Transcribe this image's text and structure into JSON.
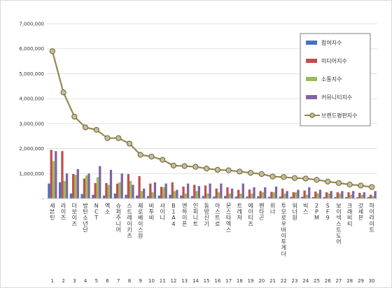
{
  "chart_data": {
    "type": "bar",
    "title": "",
    "xlabel": "",
    "ylabel": "",
    "ylim": [
      0,
      7000000
    ],
    "y_ticks": [
      0,
      1000000,
      2000000,
      3000000,
      4000000,
      5000000,
      6000000,
      7000000
    ],
    "y_tick_labels": [
      "-",
      "1,000,000",
      "2,000,000",
      "3,000,000",
      "4,000,000",
      "5,000,000",
      "6,000,000",
      "7,000,000"
    ],
    "grid": true,
    "legend_position": "right",
    "x": [
      "1",
      "2",
      "3",
      "4",
      "5",
      "6",
      "7",
      "8",
      "9",
      "10",
      "11",
      "12",
      "13",
      "14",
      "15",
      "16",
      "17",
      "18",
      "19",
      "20",
      "21",
      "22",
      "23",
      "24",
      "25",
      "26",
      "27",
      "28",
      "29",
      "30"
    ],
    "categories": [
      "세븐틴",
      "라이즈",
      "더보이즈",
      "방탄소년단",
      "NCT",
      "엑소",
      "슈퍼주니어",
      "스트레이키즈",
      "제로베이스원",
      "비투비",
      "샤이니",
      "B1A4",
      "엔하이픈",
      "인피니트",
      "동방신기",
      "아스트로",
      "몬스타엑스",
      "트레저",
      "에이티즈",
      "펜타곤",
      "위너",
      "투모로우바이투게더",
      "워너원",
      "빅스",
      "2PM",
      "SF9",
      "보이넥스트도어",
      "크래비티",
      "갓세븐",
      "하이라이트"
    ],
    "series": [
      {
        "name": "참여지수",
        "color": "#4472c4",
        "values": [
          600000,
          650000,
          200000,
          180000,
          150000,
          120000,
          200000,
          150000,
          120000,
          100000,
          120000,
          150000,
          120000,
          100000,
          100000,
          80000,
          100000,
          80000,
          80000,
          90000,
          70000,
          80000,
          70000,
          70000,
          60000,
          60000,
          60000,
          60000,
          50000,
          60000
        ]
      },
      {
        "name": "미디어지수",
        "color": "#c0504d",
        "values": [
          1950000,
          1900000,
          980000,
          800000,
          620000,
          620000,
          600000,
          980000,
          900000,
          600000,
          470000,
          650000,
          480000,
          550000,
          520000,
          400000,
          450000,
          350000,
          360000,
          300000,
          270000,
          400000,
          250000,
          320000,
          280000,
          250000,
          250000,
          250000,
          230000,
          150000
        ]
      },
      {
        "name": "소통지수",
        "color": "#9bbb59",
        "values": [
          1500000,
          700000,
          950000,
          930000,
          850000,
          550000,
          650000,
          700000,
          300000,
          250000,
          450000,
          300000,
          200000,
          300000,
          200000,
          250000,
          200000,
          200000,
          200000,
          250000,
          250000,
          200000,
          250000,
          150000,
          200000,
          200000,
          200000,
          150000,
          150000,
          100000
        ]
      },
      {
        "name": "커뮤니티지수",
        "color": "#8064a2",
        "values": [
          1900000,
          1000000,
          1180000,
          1000000,
          1300000,
          1150000,
          1000000,
          550000,
          400000,
          650000,
          600000,
          350000,
          600000,
          500000,
          600000,
          600000,
          400000,
          600000,
          450000,
          450000,
          480000,
          300000,
          350000,
          450000,
          350000,
          300000,
          300000,
          300000,
          250000,
          300000
        ]
      },
      {
        "name": "브랜드평판지수",
        "color": "#938953",
        "values": [
          5900000,
          4250000,
          3280000,
          2850000,
          2750000,
          2420000,
          2420000,
          2200000,
          1750000,
          1680000,
          1550000,
          1320000,
          1300000,
          1270000,
          1200000,
          1150000,
          1130000,
          1080000,
          1030000,
          980000,
          880000,
          860000,
          820000,
          800000,
          750000,
          680000,
          620000,
          560000,
          520000,
          460000
        ]
      }
    ]
  }
}
